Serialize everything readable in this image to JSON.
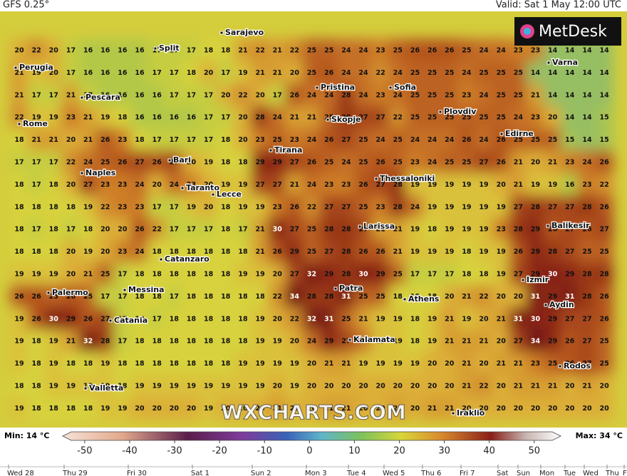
{
  "header": {
    "model": "GFS 0.25°",
    "valid": "Valid: Sat 1 May 12:00 UTC"
  },
  "logo": "MetDesk",
  "watermark": "WXCHARTS.COM",
  "grid": [
    [
      20,
      22,
      20,
      17,
      16,
      16,
      16,
      16,
      17,
      17,
      17,
      18,
      18,
      21,
      22,
      21,
      22,
      25,
      25,
      24,
      24,
      23,
      25,
      26,
      26,
      26,
      25,
      24,
      24,
      23,
      23,
      14,
      14,
      14,
      14
    ],
    [
      21,
      19,
      20,
      17,
      16,
      16,
      16,
      16,
      17,
      17,
      18,
      20,
      17,
      19,
      21,
      21,
      20,
      25,
      26,
      24,
      24,
      22,
      24,
      25,
      25,
      25,
      24,
      25,
      25,
      25,
      14,
      14,
      14,
      14,
      14
    ],
    [
      21,
      17,
      17,
      21,
      17,
      16,
      16,
      16,
      16,
      17,
      17,
      17,
      20,
      22,
      20,
      17,
      26,
      24,
      24,
      28,
      24,
      23,
      24,
      25,
      25,
      25,
      23,
      24,
      25,
      25,
      21,
      14,
      14,
      14,
      14
    ],
    [
      22,
      19,
      19,
      23,
      21,
      19,
      18,
      16,
      16,
      16,
      16,
      17,
      17,
      20,
      28,
      24,
      21,
      21,
      25,
      28,
      27,
      27,
      22,
      25,
      25,
      25,
      25,
      25,
      25,
      24,
      23,
      20,
      14,
      14,
      15
    ],
    [
      18,
      21,
      21,
      20,
      21,
      26,
      23,
      18,
      17,
      17,
      17,
      17,
      18,
      20,
      23,
      25,
      23,
      24,
      26,
      27,
      25,
      24,
      25,
      24,
      24,
      24,
      26,
      24,
      26,
      25,
      25,
      25,
      15,
      14,
      15
    ],
    [
      17,
      17,
      17,
      22,
      24,
      25,
      26,
      27,
      26,
      27,
      20,
      19,
      18,
      18,
      29,
      29,
      27,
      26,
      25,
      24,
      25,
      26,
      25,
      23,
      24,
      25,
      25,
      27,
      26,
      21,
      20,
      21,
      23,
      24,
      26
    ],
    [
      18,
      17,
      18,
      20,
      27,
      23,
      23,
      24,
      20,
      24,
      23,
      20,
      19,
      19,
      27,
      27,
      21,
      24,
      23,
      23,
      26,
      27,
      28,
      19,
      19,
      19,
      19,
      19,
      20,
      21,
      19,
      19,
      16,
      23,
      22
    ],
    [
      18,
      18,
      18,
      18,
      19,
      22,
      23,
      23,
      17,
      17,
      19,
      20,
      18,
      19,
      19,
      23,
      26,
      22,
      27,
      27,
      25,
      23,
      28,
      24,
      19,
      19,
      19,
      19,
      19,
      27,
      28,
      27,
      27,
      28,
      26
    ],
    [
      18,
      17,
      18,
      17,
      18,
      20,
      20,
      26,
      22,
      17,
      17,
      17,
      18,
      17,
      21,
      30,
      27,
      25,
      28,
      28,
      27,
      21,
      21,
      19,
      18,
      19,
      19,
      19,
      23,
      28,
      29,
      26,
      27,
      26,
      27
    ],
    [
      18,
      18,
      18,
      20,
      19,
      20,
      23,
      24,
      18,
      18,
      18,
      18,
      18,
      18,
      21,
      26,
      29,
      25,
      27,
      28,
      26,
      26,
      21,
      19,
      19,
      19,
      18,
      19,
      19,
      26,
      29,
      28,
      27,
      25,
      25
    ],
    [
      19,
      19,
      19,
      20,
      21,
      25,
      17,
      18,
      18,
      18,
      18,
      18,
      18,
      19,
      19,
      20,
      27,
      32,
      29,
      28,
      30,
      29,
      25,
      17,
      17,
      17,
      18,
      18,
      19,
      27,
      29,
      30,
      29,
      28,
      28
    ],
    [
      26,
      26,
      25,
      26,
      25,
      17,
      17,
      18,
      18,
      17,
      18,
      18,
      18,
      18,
      18,
      22,
      34,
      28,
      28,
      31,
      25,
      25,
      18,
      18,
      18,
      20,
      21,
      22,
      20,
      20,
      31,
      29,
      31,
      28,
      26
    ],
    [
      19,
      26,
      30,
      29,
      26,
      27,
      17,
      18,
      17,
      18,
      18,
      18,
      18,
      18,
      19,
      20,
      22,
      32,
      31,
      25,
      21,
      19,
      19,
      18,
      19,
      21,
      19,
      20,
      21,
      31,
      30,
      29,
      27,
      27,
      26
    ],
    [
      19,
      18,
      19,
      21,
      32,
      28,
      17,
      18,
      18,
      18,
      18,
      18,
      18,
      18,
      19,
      19,
      20,
      24,
      29,
      27,
      24,
      19,
      19,
      18,
      19,
      21,
      21,
      21,
      20,
      27,
      34,
      29,
      26,
      27,
      25
    ],
    [
      19,
      18,
      19,
      18,
      18,
      19,
      18,
      18,
      18,
      18,
      18,
      18,
      18,
      19,
      19,
      19,
      19,
      20,
      21,
      21,
      19,
      19,
      19,
      19,
      20,
      20,
      21,
      20,
      21,
      21,
      23,
      25,
      26,
      27,
      25
    ],
    [
      18,
      18,
      19,
      19,
      19,
      19,
      18,
      19,
      19,
      19,
      19,
      19,
      19,
      19,
      19,
      20,
      19,
      20,
      20,
      20,
      20,
      20,
      20,
      20,
      20,
      20,
      21,
      22,
      20,
      21,
      21,
      21,
      20,
      21,
      20
    ],
    [
      19,
      18,
      18,
      18,
      18,
      19,
      19,
      20,
      20,
      20,
      20,
      19,
      20,
      20,
      20,
      21,
      20,
      20,
      21,
      21,
      20,
      20,
      21,
      20,
      21,
      21,
      20,
      20,
      20,
      20,
      20,
      20,
      20,
      20,
      20
    ]
  ],
  "cities": [
    "Sarajevo",
    "Split",
    "Perugia",
    "Pescara",
    "Rome",
    "Bari",
    "Naples",
    "Taranto",
    "Lecce",
    "Tirana",
    "Pristina",
    "Sofia",
    "Skopje",
    "Plovdiv",
    "Edirne",
    "Varna",
    "Thessaloniki",
    "Larissa",
    "Balikesir",
    "Catanzaro",
    "Palermo",
    "Messina",
    "Patra",
    "Athens",
    "Izmir",
    "Aydin",
    "Catania",
    "Kalamata",
    "Valletta",
    "Rodos",
    "Iraklio"
  ],
  "colorbar": {
    "min": "Min: 14 °C",
    "max": "Max: 34 °C",
    "lim": [
      -53,
      54
    ],
    "ticks": [
      -50,
      -40,
      -30,
      -20,
      -10,
      0,
      10,
      20,
      30,
      40,
      50
    ]
  },
  "timeline": [
    "Wed 28",
    "Thu 29",
    "Fri 30",
    "Sat 1",
    "Sun 2",
    "Mon 3",
    "Tue 4",
    "Wed 5",
    "Thu 6",
    "Fri 7",
    "Sat",
    "Sun",
    "Mon",
    "Tue",
    "Wed",
    "Thu",
    "F"
  ]
}
